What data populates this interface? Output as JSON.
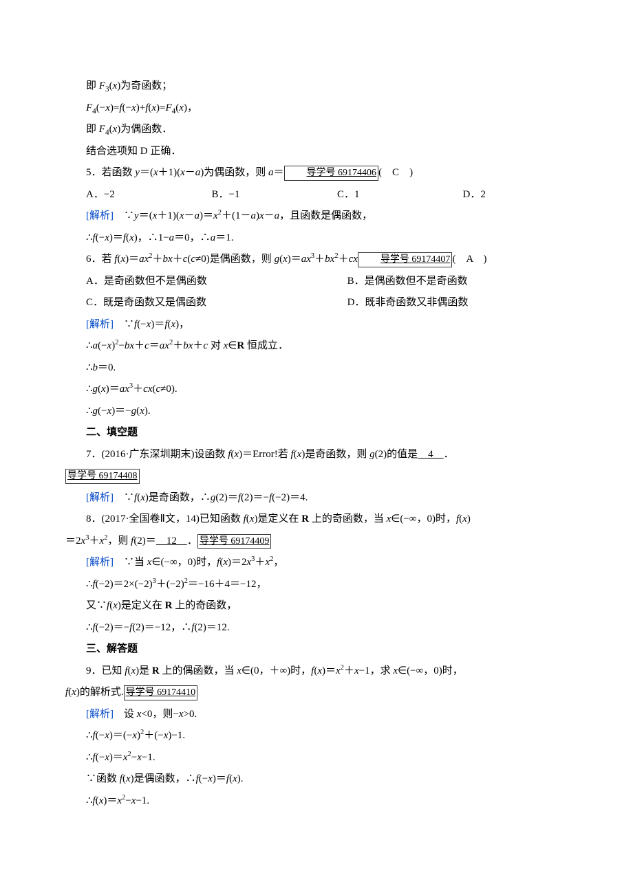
{
  "colors": {
    "accent": "#0047c6",
    "text": "#000000",
    "bg": "#ffffff",
    "box_border": "#333333"
  },
  "typography": {
    "body_fontsize_pt": 11,
    "line_height": 2.1,
    "indent_em": 2,
    "font_family": "Times New Roman / SimSun"
  },
  "lines": {
    "l01": "即 F₃(x)为奇函数；",
    "l02": "F₄(−x)=f(−x)+f(x)=F₄(x)，",
    "l03": "即 F₄(x)为偶函数．",
    "l04": "结合选项知 D 正确．",
    "l05a": "5．若函数 y＝(x＋1)(x－a)为偶函数，则 a＝",
    "l05b": "导学号 69174406",
    "l05c": "(　C　)",
    "l06": {
      "A": "A．−2",
      "B": "B．−1",
      "C": "C．1",
      "D": "D．2"
    },
    "l07_label": "[解析]",
    "l07": "　∵y＝(x＋1)(x－a)＝x²＋(1－a)x－a，且函数是偶函数，",
    "l08": "∴f(−x)＝f(x)，∴1−a＝0，∴a＝1.",
    "l09a": "6．若 f(x)＝ax²＋bx＋c(c≠0)是偶函数，则 g(x)＝ax³＋bx²＋cx",
    "l09b": "导学号 69174407",
    "l09c": "(　A　)",
    "l10": {
      "A": "A．是奇函数但不是偶函数",
      "B": "B．是偶函数但不是奇函数"
    },
    "l11": {
      "C": "C．既是奇函数又是偶函数",
      "D": "D．既非奇函数又非偶函数"
    },
    "l12": "　∵f(−x)＝f(x)，",
    "l13": "∴a(−x)²−bx＋c＝ax²＋bx＋c 对 x∈",
    "l13r": "R",
    "l13t": " 恒成立．",
    "l14": "∴b＝0.",
    "l15": "∴g(x)＝ax³＋cx(c≠0).",
    "l16": "∴g(−x)＝−g(x).",
    "l17": "二、填空题",
    "l18a": "7．(2016·广东深圳期末)设函数 f(x)＝Error!若 f(x)是奇函数，则 g(2)的值是",
    "l18b": "　4　",
    "l18c": "．",
    "l19": "导学号 69174408",
    "l20": "　∵f(x)是奇函数，∴g(2)＝f(2)＝−f(−2)＝4.",
    "l21a": "8．(2017·全国卷Ⅱ文，14)已知函数 f(x)是定义在 ",
    "l21r": "R",
    "l21b": " 上的奇函数，当 x∈(−∞，0)时，f(x)",
    "l22a": "＝2x³＋x²，则 f(2)＝",
    "l22b": "　12　",
    "l22c": "．",
    "l22d": "导学号 69174409",
    "l23": "　∵当 x∈(−∞，0)时，f(x)＝2x³＋x²，",
    "l24": "∴f(−2)＝2×(−2)³＋(−2)²＝−16＋4＝−12，",
    "l25a": "又∵f(x)是定义在 ",
    "l25r": "R",
    "l25b": " 上的奇函数，",
    "l26": "∴f(−2)＝−f(2)＝−12，∴f(2)＝12.",
    "l27": "三、解答题",
    "l28a": "9．已知 f(x)是 ",
    "l28r": "R",
    "l28b": " 上的偶函数，当 x∈(0，＋∞)时，f(x)＝x²＋x−1，求 x∈(−∞，0)时，",
    "l29a": "f(x)的解析式.",
    "l29b": "导学号 69174410",
    "l30": "　设 x<0，则−x>0.",
    "l31": "∴f(−x)＝(−x)²＋(−x)−1.",
    "l32": "∴f(−x)＝x²−x−1.",
    "l33": "∵函数 f(x)是偶函数，∴f(−x)＝f(x).",
    "l34": "∴f(x)＝x²−x−1."
  }
}
